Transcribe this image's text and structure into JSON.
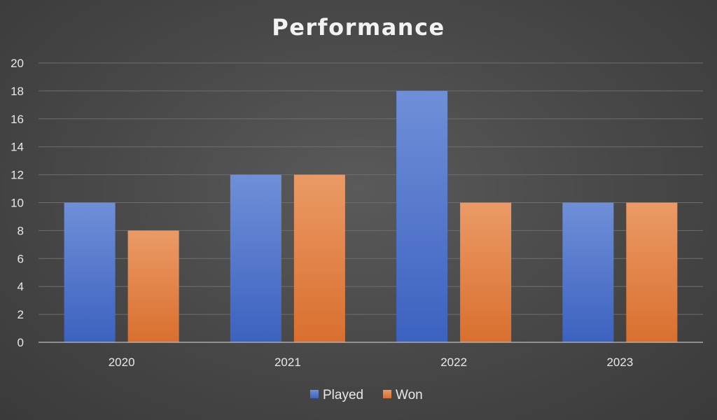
{
  "chart_data": {
    "type": "bar",
    "title": "Performance",
    "categories": [
      "2020",
      "2021",
      "2022",
      "2023"
    ],
    "series": [
      {
        "name": "Played",
        "values": [
          10,
          12,
          18,
          10
        ]
      },
      {
        "name": "Won",
        "values": [
          8,
          12,
          10,
          10
        ]
      }
    ],
    "ylim": [
      0,
      20
    ],
    "yticks": [
      0,
      2,
      4,
      6,
      8,
      10,
      12,
      14,
      16,
      18,
      20
    ],
    "grid": true,
    "legend": "bottom",
    "colors": {
      "Played_top": "#6f8fd8",
      "Played_bottom": "#3c62c0",
      "Won_top": "#eb9a66",
      "Won_bottom": "#d96f2e"
    }
  }
}
